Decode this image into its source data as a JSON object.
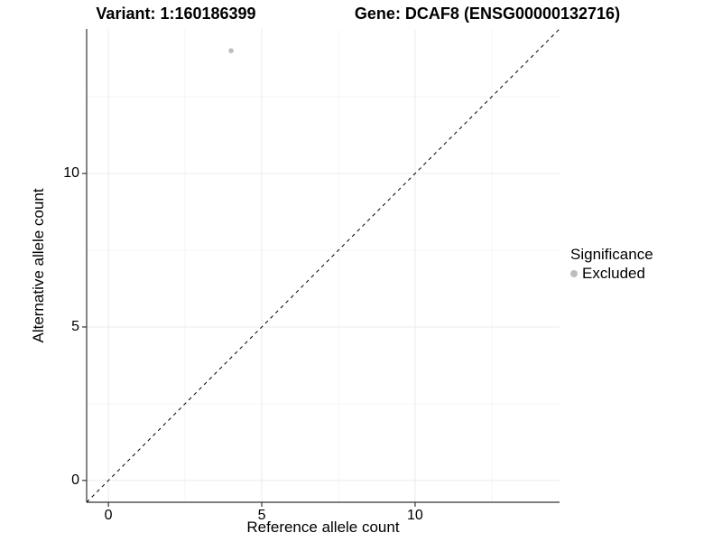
{
  "chart_data": {
    "type": "scatter",
    "title_left": "Variant: 1:160186399",
    "title_right": "Gene: DCAF8 (ENSG00000132716)",
    "xlabel": "Reference allele count",
    "ylabel": "Alternative allele count",
    "xlim": [
      -0.71,
      14.71
    ],
    "ylim": [
      -0.71,
      14.71
    ],
    "x_major_ticks": [
      0,
      5,
      10
    ],
    "y_major_ticks": [
      0,
      5,
      10
    ],
    "x_minor_ticks": [
      2.5,
      7.5,
      12.5
    ],
    "y_minor_ticks": [
      2.5,
      7.5,
      12.5
    ],
    "grid": true,
    "points": [
      {
        "x": 4,
        "y": 14,
        "series": "Excluded"
      }
    ],
    "reference_line": {
      "slope": 1,
      "intercept": 0,
      "style": "dashed"
    },
    "legend": {
      "title": "Significance",
      "position": "right",
      "items": [
        {
          "label": "Excluded",
          "color": "#bebebe"
        }
      ]
    }
  },
  "colors": {
    "background": "#ffffff",
    "axis_line": "#333333",
    "grid_major": "#ebebeb",
    "grid_minor": "#f5f5f5",
    "reference_line": "#000000",
    "text": "#000000"
  }
}
